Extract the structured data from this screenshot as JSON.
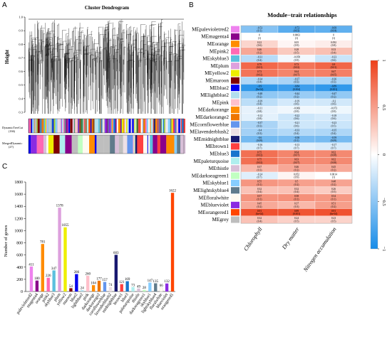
{
  "panels": {
    "a": "A",
    "b": "B",
    "c": "C"
  },
  "dendrogram": {
    "title": "Cluster Dendrogram",
    "ylabel": "Height",
    "yticks": [
      "0.3",
      "0.4",
      "0.5",
      "0.6",
      "0.7",
      "0.8",
      "0.9",
      "1.0"
    ],
    "bar1_label": "DynamicTreeCut",
    "bar1_count": "(166)",
    "bar2_label": "MergedDynamic",
    "bar2_count": "(27)"
  },
  "heatmap": {
    "title": "Module−trait relationships",
    "traits": [
      "Chlorophyll",
      "Dry matter",
      "Nitrogen accumulation"
    ],
    "legend_ticks": [
      "1",
      "0.5",
      "0",
      "−0.5",
      "−1"
    ]
  },
  "chart_data": [
    {
      "type": "heatmap",
      "title": "Module−trait relationships",
      "rows": [
        "MEpalevioletred2",
        "MEmagenta4",
        "MEorange",
        "MEpink2",
        "MEskyblue3",
        "MEplum",
        "MEyellow2",
        "MEmaroon",
        "MEblue2",
        "MElightblue2",
        "MEpink",
        "MEdarkorange",
        "MEdarkorange2",
        "MEcornflowerblue",
        "MElavenderblush2",
        "MEmidnightblue",
        "MEbrown1",
        "MEblue3",
        "MEpaleturquoise",
        "MEthistle",
        "MEdarkseagreen1",
        "MEskyblue1",
        "MElightskyblue4",
        "MEfloralwhite",
        "MEblueviolet",
        "MEorangered1",
        "MEgrey"
      ],
      "row_colors": [
        "#ee82ee",
        "#8b008b",
        "#ff8c00",
        "#ff69b4",
        "#5bc0de",
        "#dda0dd",
        "#eeee00",
        "#800000",
        "#0000ee",
        "#b2dfee",
        "#ffc0cb",
        "#ff8c00",
        "#ee7600",
        "#6495ed",
        "#eee0e5",
        "#191970",
        "#ff4040",
        "#1874cd",
        "#afeeee",
        "#d8bfd8",
        "#c1ffc1",
        "#87ceff",
        "#607b8b",
        "#fffaf0",
        "#8a2be2",
        "#ff4500",
        "#bebebe"
      ],
      "columns": [
        "Chlorophyll",
        "Dry matter",
        "Nitrogen accumulation"
      ],
      "values": [
        [
          -0.53,
          -0.72,
          -0.69
        ],
        [
          0,
          0.0063,
          0
        ],
        [
          0.22,
          0.05,
          0.092
        ],
        [
          0.46,
          0.28,
          0.33
        ],
        [
          -0.31,
          -0.058,
          -0.23
        ],
        [
          0.79,
          0.73,
          0.8
        ],
        [
          0.73,
          0.64,
          0.67
        ],
        [
          -0.34,
          -0.37,
          -0.36
        ],
        [
          -0.9,
          -0.84,
          -0.89
        ],
        [
          -0.48,
          -0.44,
          -0.47
        ],
        [
          -0.29,
          -0.19,
          -0.2
        ],
        [
          -0.11,
          -0.066,
          -0.073
        ],
        [
          -0.12,
          -0.22,
          -0.18
        ],
        [
          -0.37,
          -0.21,
          -0.23
        ],
        [
          -0.4,
          -0.33,
          -0.35
        ],
        [
          -0.6,
          -0.58,
          -0.59
        ],
        [
          -0.16,
          -0.13,
          -0.17
        ],
        [
          0.75,
          0.64,
          0.62
        ],
        [
          0.75,
          0.63,
          0.62
        ],
        [
          0.37,
          0.46,
          0.45
        ],
        [
          -0.14,
          0.052,
          0.0014
        ],
        [
          0.55,
          0.5,
          0.48
        ],
        [
          0.32,
          0.32,
          0.26
        ],
        [
          0.57,
          0.58,
          0.54
        ],
        [
          0.45,
          0.37,
          0.51
        ],
        [
          0.91,
          0.89,
          0.91
        ],
        [
          0.32,
          0.24,
          0.23
        ]
      ],
      "pvalues": [
        [
          "0.1",
          "0.03",
          "0.04"
        ],
        [
          "1",
          "1",
          "1"
        ],
        [
          "0.6",
          "0.9",
          "0.8"
        ],
        [
          "0.2",
          "0.5",
          "0.4"
        ],
        [
          "0.4",
          "0.9",
          "0.6"
        ],
        [
          "0.01",
          "0.02",
          "0.01"
        ],
        [
          "0.02",
          "0.07",
          "0.05"
        ],
        [
          "0.4",
          "0.3",
          "0.3"
        ],
        [
          "9e-04",
          "0.004",
          "0.001"
        ],
        [
          "0.2",
          "0.2",
          "0.2"
        ],
        [
          "0.4",
          "0.6",
          "0.6"
        ],
        [
          "0.8",
          "0.9",
          "0.9"
        ],
        [
          "0.8",
          "0.6",
          "0.6"
        ],
        [
          "0.3",
          "0.6",
          "0.5"
        ],
        [
          "0.3",
          "0.4",
          "0.4"
        ],
        [
          "0.09",
          "0.1",
          "0.09"
        ],
        [
          "0.7",
          "0.7",
          "0.7"
        ],
        [
          "0.02",
          "0.07",
          "0.08"
        ],
        [
          "0.02",
          "0.07",
          "0.08"
        ],
        [
          "0.3",
          "0.2",
          "0.2"
        ],
        [
          "0.7",
          "0.9",
          "1"
        ],
        [
          "0.1",
          "0.2",
          "0.2"
        ],
        [
          "0.4",
          "0.4",
          "0.5"
        ],
        [
          "0.1",
          "0.1",
          "0.1"
        ],
        [
          "0.2",
          "0.3",
          "0.2"
        ],
        [
          "6e-04",
          "0.001",
          "6e-04"
        ],
        [
          "0.4",
          "0.5",
          "0.5"
        ]
      ],
      "color_range": [
        -1,
        1
      ]
    },
    {
      "type": "bar",
      "ylabel": "Number of genes",
      "ylim": [
        0,
        1800
      ],
      "yticks": [
        0,
        200,
        400,
        600,
        800,
        1000,
        1200,
        1400,
        1600,
        1800
      ],
      "categories": [
        "palevioletred2",
        "magenta4",
        "orange",
        "pink2",
        "skyblue3",
        "plum",
        "yellow2",
        "maroon",
        "blue2",
        "lightblue2",
        "pink",
        "darkorange",
        "darkorange2",
        "cornflowerblue",
        "lavenderblush2",
        "midnightblue",
        "brown1",
        "blue3",
        "paleturquoise",
        "thistle",
        "darkseagreen1",
        "skyblue1",
        "lightskyblue4",
        "floralwhite",
        "blueviolet",
        "orangered1"
      ],
      "values": [
        411,
        180,
        781,
        226,
        347,
        1378,
        1055,
        54,
        286,
        24,
        260,
        104,
        177,
        157,
        74,
        603,
        121,
        169,
        73,
        49,
        28,
        147,
        135,
        66,
        132,
        1622
      ],
      "colors": [
        "#ee82ee",
        "#8b008b",
        "#ff8c00",
        "#ff69b4",
        "#5bc0de",
        "#dda0dd",
        "#eeee00",
        "#800000",
        "#0000ee",
        "#b2dfee",
        "#ffc0cb",
        "#ff8c00",
        "#ee7600",
        "#6495ed",
        "#eee0e5",
        "#191970",
        "#ff4040",
        "#1874cd",
        "#afeeee",
        "#d8bfd8",
        "#c1ffc1",
        "#87ceff",
        "#607b8b",
        "#fffaf0",
        "#8a2be2",
        "#ff4500"
      ]
    }
  ]
}
